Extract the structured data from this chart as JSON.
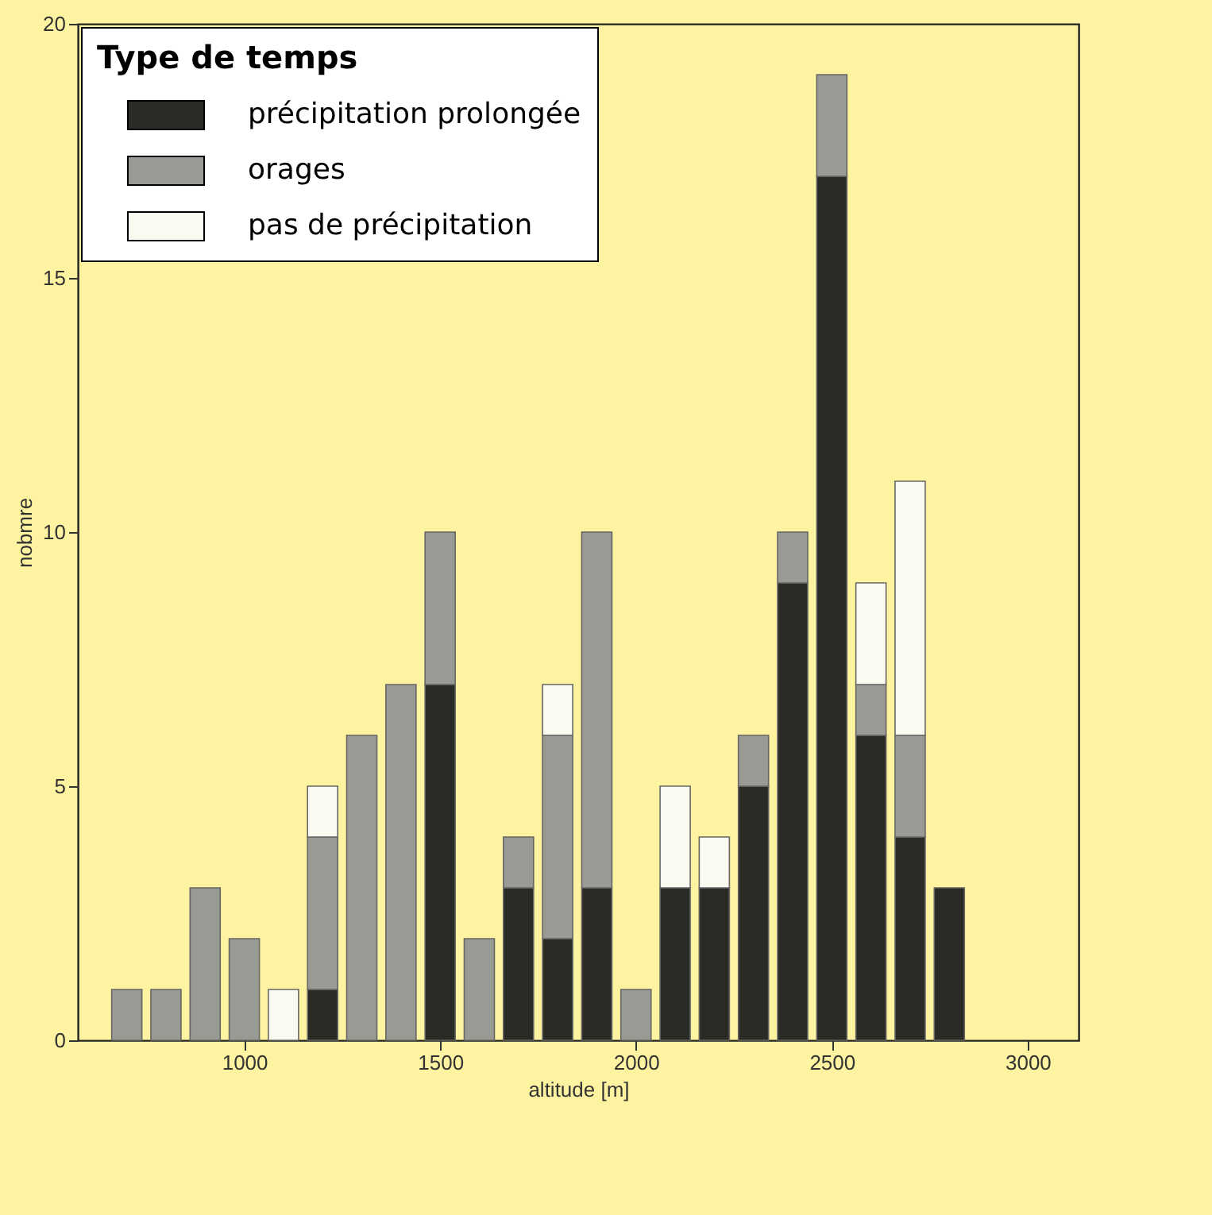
{
  "chart_data": {
    "type": "bar",
    "stacked": true,
    "xlabel": "altitude [m]",
    "ylabel": "nobmre",
    "legend_title": "Type de temps",
    "legend": "top left",
    "x": [
      700,
      800,
      900,
      1000,
      1100,
      1200,
      1300,
      1400,
      1500,
      1600,
      1700,
      1800,
      1900,
      2000,
      2100,
      2200,
      2300,
      2400,
      2500,
      2600,
      2700,
      2800
    ],
    "series": [
      {
        "name": "précipitation prolongée",
        "color": "#2b2b26",
        "values": [
          null,
          null,
          null,
          null,
          null,
          1,
          null,
          null,
          7,
          null,
          3,
          2,
          3,
          null,
          3,
          3,
          5,
          9,
          17,
          6,
          4,
          3
        ]
      },
      {
        "name": "orages",
        "color": "#9a9a94",
        "values": [
          1,
          1,
          3,
          2,
          null,
          3,
          6,
          7,
          3,
          2,
          1,
          4,
          7,
          1,
          null,
          null,
          1,
          1,
          2,
          1,
          2,
          null
        ]
      },
      {
        "name": "pas de précipitation",
        "color": "#fafaf0",
        "values": [
          null,
          null,
          null,
          null,
          1,
          1,
          null,
          null,
          null,
          null,
          null,
          1,
          null,
          null,
          2,
          1,
          null,
          null,
          null,
          2,
          5,
          null
        ]
      }
    ],
    "xlim": [
      575,
      3130
    ],
    "xticks": [
      1000,
      1500,
      2000,
      2500,
      3000
    ],
    "ylim": [
      0,
      20
    ],
    "yticks": [
      0,
      5,
      10,
      15,
      20
    ],
    "grid": false
  }
}
